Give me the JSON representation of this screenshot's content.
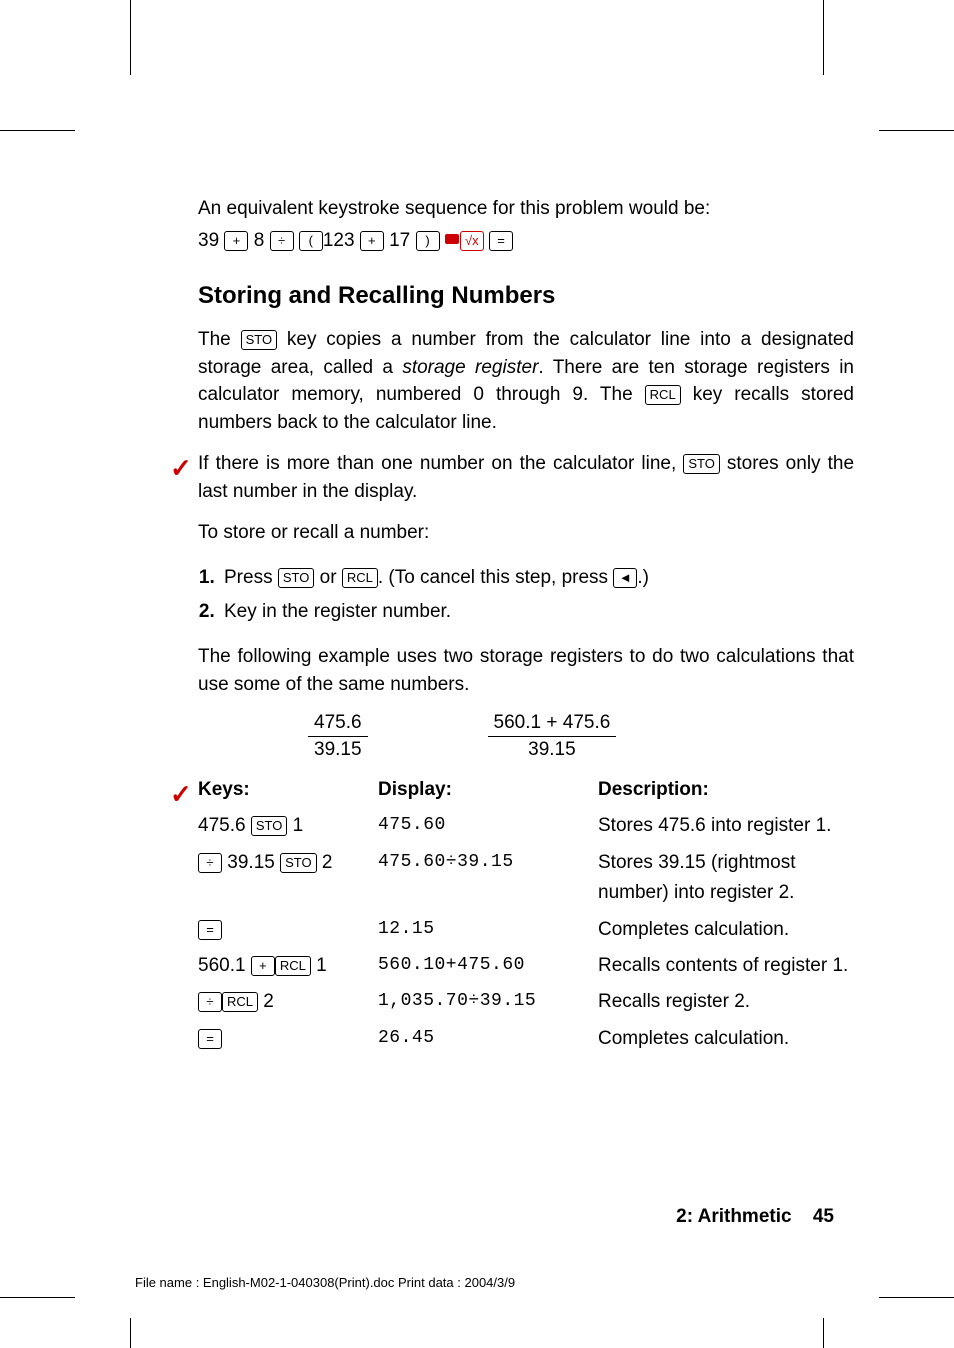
{
  "intro": {
    "line1": "An equivalent keystroke sequence for this problem would be:",
    "seq_parts": {
      "p1": "39 ",
      "p2": " 8 ",
      "p3": " ",
      "p4": "123 ",
      "p5": " 17 ",
      "p6": " ",
      "p7": " "
    },
    "keys": {
      "plus": "+",
      "div": "÷",
      "lparen": "(",
      "rparen": ")",
      "sqrt": "√x",
      "eq": "="
    }
  },
  "heading": "Storing and Recalling Numbers",
  "para1": {
    "a": "The ",
    "sto": "STO",
    "b": " key copies a number from the calculator line into a designated storage area, called a ",
    "c": "storage register",
    "d": ". There are ten storage registers in calculator memory, numbered 0 through 9. The ",
    "rcl": "RCL",
    "e": " key recalls stored numbers back to the calculator line."
  },
  "note": {
    "a": "If there is more than one number on the calculator line, ",
    "sto": "STO",
    "b": " stores only the last number in the display."
  },
  "para2": "To store or recall a number:",
  "steps": {
    "s1a": "Press ",
    "s1_sto": "STO",
    "s1b": " or ",
    "s1_rcl": "RCL",
    "s1c": ". (To cancel this step, press ",
    "s1_back": "◄",
    "s1d": ".)",
    "s2": "Key in the register number."
  },
  "para3": "The following example uses two storage registers to do two calculations that use some of the same numbers.",
  "fracs": {
    "f1_num": "475.6",
    "f1_den": "39.15",
    "f2_num": "560.1 + 475.6",
    "f2_den": "39.15"
  },
  "table": {
    "h1": "Keys:",
    "h2": "Display:",
    "h3": "Description:",
    "rows": [
      {
        "keys_a": "475.6 ",
        "k1": "STO",
        "keys_b": " 1",
        "disp": "475.60",
        "desc": "Stores 475.6 into register 1."
      },
      {
        "k1": "÷",
        "keys_a": " 39.15 ",
        "k2": "STO",
        "keys_b": " 2",
        "disp": "475.60÷39.15",
        "desc": "Stores 39.15 (rightmost number) into register 2."
      },
      {
        "k1": "=",
        "disp": "12.15",
        "desc": "Completes calculation."
      },
      {
        "keys_a": "560.1 ",
        "k1": "+",
        "k2": "RCL",
        "keys_b": " 1",
        "disp": "560.10+475.60",
        "desc": "Recalls contents of register 1."
      },
      {
        "k1": "÷",
        "k2": "RCL",
        "keys_a": " 2",
        "disp": "1,035.70÷39.15",
        "desc": "Recalls register 2."
      },
      {
        "k1": "=",
        "disp": "26.45",
        "desc": "Completes calculation."
      }
    ]
  },
  "footer": {
    "chapter": "2: Arithmetic",
    "page": "45"
  },
  "fileline": "File name : English-M02-1-040308(Print).doc    Print data : 2004/3/9"
}
